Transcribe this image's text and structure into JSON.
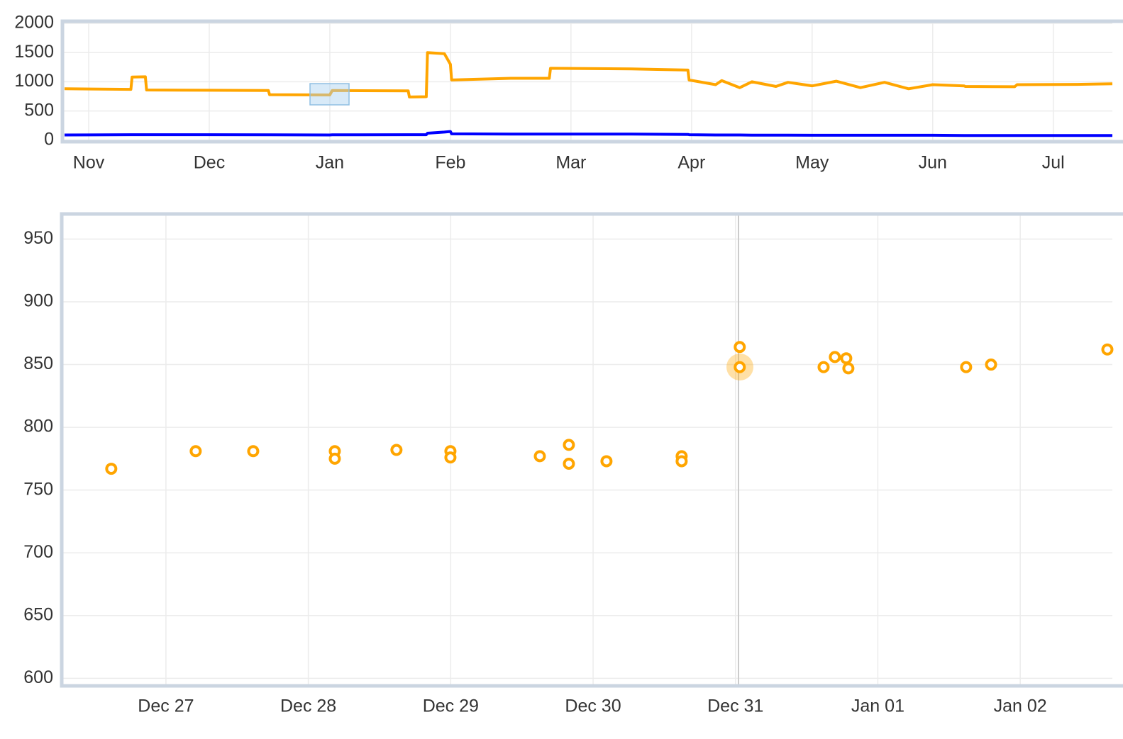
{
  "chart_data": [
    {
      "type": "line",
      "x": [
        -0.2,
        0.35,
        0.36,
        0.47,
        0.48,
        1.0,
        1.49,
        1.5,
        2.0,
        2.02,
        2.65,
        2.66,
        2.8,
        2.81,
        2.95,
        3.0,
        3.01,
        3.5,
        3.82,
        3.83,
        4.5,
        4.97,
        4.98,
        5.2,
        5.25,
        5.4,
        5.5,
        5.7,
        5.8,
        6.0,
        6.2,
        6.4,
        6.6,
        6.8,
        7.0,
        7.26,
        7.27,
        7.68,
        7.7,
        8.2,
        8.49
      ],
      "series": [
        {
          "color": "#ffa500",
          "values": [
            880,
            870,
            1080,
            1085,
            860,
            855,
            850,
            780,
            775,
            850,
            845,
            740,
            745,
            1500,
            1480,
            1300,
            1030,
            1060,
            1060,
            1230,
            1220,
            1200,
            1030,
            950,
            1020,
            900,
            1000,
            920,
            990,
            930,
            1010,
            900,
            990,
            880,
            950,
            930,
            920,
            915,
            950,
            955,
            965
          ]
        },
        {
          "color": "#0000ff",
          "values": [
            90,
            95,
            95,
            95,
            95,
            95,
            92,
            92,
            90,
            92,
            95,
            95,
            95,
            120,
            140,
            150,
            110,
            105,
            105,
            105,
            105,
            100,
            95,
            90,
            90,
            90,
            88,
            88,
            88,
            85,
            85,
            85,
            85,
            85,
            85,
            80,
            80,
            80,
            80,
            80,
            80
          ]
        }
      ],
      "xlim": [
        -0.206,
        8.49
      ],
      "xticks": [
        {
          "value": 0,
          "label": "Nov"
        },
        {
          "value": 1,
          "label": "Dec"
        },
        {
          "value": 2,
          "label": "Jan"
        },
        {
          "value": 3,
          "label": "Feb"
        },
        {
          "value": 4,
          "label": "Mar"
        },
        {
          "value": 5,
          "label": "Apr"
        },
        {
          "value": 6,
          "label": "May"
        },
        {
          "value": 7,
          "label": "Jun"
        },
        {
          "value": 8,
          "label": "Jul"
        }
      ],
      "ylim": [
        -25,
        2035
      ],
      "yticks": [
        0,
        500,
        1000,
        1500,
        2000
      ],
      "grid": true
    },
    {
      "type": "scatter",
      "x": [
        -0.384,
        0.209,
        0.613,
        1.186,
        1.186,
        1.619,
        1.998,
        1.998,
        2.626,
        2.83,
        2.83,
        3.094,
        3.622,
        3.622,
        4.03,
        4.03,
        4.619,
        4.698,
        4.778,
        4.793,
        5.62,
        5.795,
        6.612
      ],
      "values": [
        767,
        781,
        781,
        781,
        775,
        782,
        781,
        776,
        777,
        786,
        771,
        773,
        777,
        773,
        864,
        848,
        848,
        856,
        855,
        847,
        848,
        850,
        862
      ],
      "color": "#ffa500",
      "xlim": [
        -0.727,
        6.647
      ],
      "xticks": [
        {
          "value": 0,
          "label": "Dec 27"
        },
        {
          "value": 1,
          "label": "Dec 28"
        },
        {
          "value": 2,
          "label": "Dec 29"
        },
        {
          "value": 3,
          "label": "Dec 30"
        },
        {
          "value": 4,
          "label": "Dec 31"
        },
        {
          "value": 5,
          "label": "Jan 01"
        },
        {
          "value": 6,
          "label": "Jan 02"
        }
      ],
      "ylim": [
        594,
        970
      ],
      "yticks": [
        600,
        650,
        700,
        750,
        800,
        850,
        900,
        950
      ],
      "grid": true
    }
  ]
}
